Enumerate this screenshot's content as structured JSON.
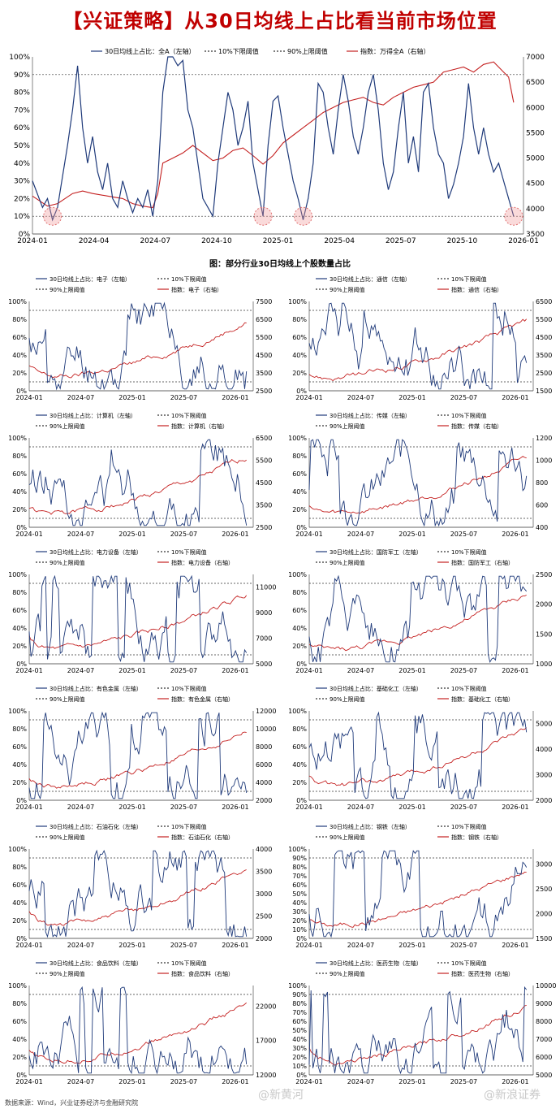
{
  "title": "【兴证策略】从30日均线上占比看当前市场位置",
  "subtitle": "图：部分行业30日均线上个股数量占比",
  "source": "数据来源：Wind，兴业证券经济与金融研究院",
  "watermarks": [
    "@新黄河",
    "@新浪证券"
  ],
  "colors": {
    "title": "#c00000",
    "ratio": "#1f3a7a",
    "index": "#c42020",
    "circle": "#e07070"
  },
  "threshold_labels": {
    "low": "10%下限阈值",
    "high": "90%上限阈值"
  },
  "chart_data": [
    {
      "id": "main",
      "type": "line",
      "legend": {
        "ratio": "30日均线上占比：全A（左轴）",
        "index": "指数：万得全A（右轴）"
      },
      "x_ticks": [
        "2024-01",
        "2024-04",
        "2024-07",
        "2024-10",
        "2025-01",
        "2025-04",
        "2025-07",
        "2025-10",
        "2026-01"
      ],
      "y_left_ticks": [
        "0%",
        "10%",
        "20%",
        "30%",
        "40%",
        "50%",
        "60%",
        "70%",
        "80%",
        "90%",
        "100%"
      ],
      "y_right_ticks": [
        "3500",
        "4000",
        "4500",
        "5000",
        "5500",
        "6000",
        "6500",
        "7000"
      ],
      "ylim_left": [
        0,
        100
      ],
      "ylim_right": [
        3500,
        7000
      ],
      "ratio_series": [
        [
          0,
          30
        ],
        [
          2,
          15
        ],
        [
          3,
          20
        ],
        [
          4,
          8
        ],
        [
          5,
          15
        ],
        [
          7,
          50
        ],
        [
          8,
          70
        ],
        [
          9,
          95
        ],
        [
          10,
          60
        ],
        [
          11,
          40
        ],
        [
          12,
          55
        ],
        [
          13,
          35
        ],
        [
          14,
          25
        ],
        [
          15,
          40
        ],
        [
          16,
          20
        ],
        [
          17,
          15
        ],
        [
          18,
          30
        ],
        [
          19,
          20
        ],
        [
          20,
          12
        ],
        [
          21,
          20
        ],
        [
          22,
          15
        ],
        [
          23,
          25
        ],
        [
          24,
          10
        ],
        [
          25,
          30
        ],
        [
          26,
          80
        ],
        [
          27,
          100
        ],
        [
          28,
          100
        ],
        [
          29,
          95
        ],
        [
          30,
          98
        ],
        [
          31,
          70
        ],
        [
          32,
          60
        ],
        [
          33,
          40
        ],
        [
          34,
          20
        ],
        [
          35,
          15
        ],
        [
          36,
          10
        ],
        [
          37,
          40
        ],
        [
          38,
          60
        ],
        [
          39,
          80
        ],
        [
          40,
          70
        ],
        [
          41,
          50
        ],
        [
          42,
          60
        ],
        [
          43,
          75
        ],
        [
          44,
          40
        ],
        [
          45,
          25
        ],
        [
          46,
          10
        ],
        [
          47,
          50
        ],
        [
          48,
          75
        ],
        [
          49,
          78
        ],
        [
          50,
          60
        ],
        [
          51,
          45
        ],
        [
          52,
          30
        ],
        [
          53,
          20
        ],
        [
          54,
          8
        ],
        [
          55,
          20
        ],
        [
          56,
          40
        ],
        [
          57,
          85
        ],
        [
          58,
          80
        ],
        [
          59,
          60
        ],
        [
          60,
          45
        ],
        [
          61,
          70
        ],
        [
          62,
          90
        ],
        [
          63,
          75
        ],
        [
          64,
          55
        ],
        [
          65,
          45
        ],
        [
          66,
          60
        ],
        [
          67,
          80
        ],
        [
          68,
          90
        ],
        [
          69,
          70
        ],
        [
          70,
          40
        ],
        [
          71,
          25
        ],
        [
          72,
          35
        ],
        [
          73,
          60
        ],
        [
          74,
          80
        ],
        [
          75,
          40
        ],
        [
          76,
          55
        ],
        [
          77,
          35
        ],
        [
          78,
          80
        ],
        [
          79,
          85
        ],
        [
          80,
          60
        ],
        [
          81,
          45
        ],
        [
          82,
          40
        ],
        [
          83,
          20
        ],
        [
          84,
          28
        ],
        [
          85,
          40
        ],
        [
          86,
          55
        ],
        [
          87,
          85
        ],
        [
          88,
          60
        ],
        [
          89,
          45
        ],
        [
          90,
          60
        ],
        [
          91,
          45
        ],
        [
          92,
          35
        ],
        [
          93,
          40
        ],
        [
          94,
          30
        ],
        [
          95,
          20
        ],
        [
          96,
          10
        ]
      ],
      "index_series": [
        [
          0,
          4250
        ],
        [
          3,
          4050
        ],
        [
          5,
          4100
        ],
        [
          8,
          4300
        ],
        [
          10,
          4350
        ],
        [
          12,
          4300
        ],
        [
          15,
          4250
        ],
        [
          18,
          4200
        ],
        [
          20,
          4100
        ],
        [
          22,
          4050
        ],
        [
          24,
          4020
        ],
        [
          25,
          4300
        ],
        [
          26,
          4900
        ],
        [
          28,
          5000
        ],
        [
          30,
          5100
        ],
        [
          32,
          5250
        ],
        [
          34,
          5100
        ],
        [
          36,
          4950
        ],
        [
          38,
          5000
        ],
        [
          40,
          5150
        ],
        [
          42,
          5200
        ],
        [
          44,
          5050
        ],
        [
          46,
          4880
        ],
        [
          48,
          5050
        ],
        [
          50,
          5300
        ],
        [
          52,
          5450
        ],
        [
          54,
          5600
        ],
        [
          56,
          5750
        ],
        [
          58,
          5900
        ],
        [
          60,
          6000
        ],
        [
          62,
          6100
        ],
        [
          64,
          6150
        ],
        [
          66,
          6200
        ],
        [
          68,
          6100
        ],
        [
          70,
          6050
        ],
        [
          72,
          6200
        ],
        [
          74,
          6300
        ],
        [
          76,
          6400
        ],
        [
          78,
          6450
        ],
        [
          80,
          6500
        ],
        [
          82,
          6700
        ],
        [
          84,
          6750
        ],
        [
          86,
          6800
        ],
        [
          88,
          6700
        ],
        [
          90,
          6850
        ],
        [
          92,
          6900
        ],
        [
          94,
          6700
        ],
        [
          95,
          6600
        ],
        [
          96,
          6100
        ]
      ],
      "circles": [
        [
          4,
          10
        ],
        [
          46,
          10
        ],
        [
          54,
          10
        ],
        [
          96,
          10
        ]
      ]
    },
    {
      "id": "s1",
      "type": "line",
      "legend": {
        "ratio": "30日均线上占比：电子（左轴）",
        "index": "指数：电子（右轴）"
      },
      "x_ticks": [
        "2024-01",
        "2024-07",
        "2025-01",
        "2025-07",
        "2026-01"
      ],
      "y_left_ticks": [
        "0%",
        "20%",
        "40%",
        "60%",
        "80%",
        "100%"
      ],
      "y_right_ticks": [
        "2500",
        "3500",
        "4500",
        "5500",
        "6500",
        "7500"
      ],
      "ylim_left": [
        0,
        100
      ],
      "ylim_right": [
        2500,
        7500
      ]
    },
    {
      "id": "s2",
      "type": "line",
      "legend": {
        "ratio": "30日均线上占比：通信（左轴）",
        "index": "指数：通信（右轴）"
      },
      "x_ticks": [
        "2024-01",
        "2024-07",
        "2025-01",
        "2025-07",
        "2026-01"
      ],
      "y_left_ticks": [
        "0%",
        "20%",
        "40%",
        "60%",
        "80%",
        "100%"
      ],
      "y_right_ticks": [
        "1500",
        "2500",
        "3500",
        "4500",
        "5500",
        "6500"
      ],
      "ylim_left": [
        0,
        100
      ],
      "ylim_right": [
        1500,
        6500
      ]
    },
    {
      "id": "s3",
      "type": "line",
      "legend": {
        "ratio": "30日均线上占比：计算机（左轴）",
        "index": "指数：计算机（右轴）"
      },
      "x_ticks": [
        "2024-01",
        "2024-07",
        "2025-01",
        "2025-07",
        "2026-01"
      ],
      "y_left_ticks": [
        "0%",
        "20%",
        "40%",
        "60%",
        "80%",
        "100%"
      ],
      "y_right_ticks": [
        "2500",
        "3500",
        "4500",
        "5500",
        "6500"
      ],
      "ylim_left": [
        0,
        100
      ],
      "ylim_right": [
        2500,
        6500
      ]
    },
    {
      "id": "s4",
      "type": "line",
      "legend": {
        "ratio": "30日均线上占比：传媒（左轴）",
        "index": "指数：传媒（右轴）"
      },
      "x_ticks": [
        "2024-01",
        "2024-07",
        "2025-01",
        "2025-07",
        "2026-01"
      ],
      "y_left_ticks": [
        "0%",
        "20%",
        "40%",
        "60%",
        "80%",
        "100%"
      ],
      "y_right_ticks": [
        "400",
        "600",
        "800",
        "1000",
        "1200"
      ],
      "ylim_left": [
        0,
        100
      ],
      "ylim_right": [
        400,
        1200
      ]
    },
    {
      "id": "s5",
      "type": "line",
      "legend": {
        "ratio": "30日均线上占比：电力设备（左轴）",
        "index": "指数：电力设备（右轴）"
      },
      "x_ticks": [
        "2024-01",
        "2024-07",
        "2025-01",
        "2025-07",
        "2026-01"
      ],
      "y_left_ticks": [
        "0%",
        "20%",
        "40%",
        "60%",
        "80%",
        "100%"
      ],
      "y_right_ticks": [
        "5000",
        "7000",
        "9000",
        "11000"
      ],
      "ylim_left": [
        0,
        100
      ],
      "ylim_right": [
        5000,
        12000
      ]
    },
    {
      "id": "s6",
      "type": "line",
      "legend": {
        "ratio": "30日均线上占比：国防军工（左轴）",
        "index": "指数：国防军工（右轴）"
      },
      "x_ticks": [
        "2024-01",
        "2024-07",
        "2025-01",
        "2025-07",
        "2026-01"
      ],
      "y_left_ticks": [
        "0%",
        "20%",
        "40%",
        "60%",
        "80%",
        "100%"
      ],
      "y_right_ticks": [
        "1000",
        "1500",
        "2000",
        "2500"
      ],
      "ylim_left": [
        0,
        100
      ],
      "ylim_right": [
        1000,
        2500
      ]
    },
    {
      "id": "s7",
      "type": "line",
      "legend": {
        "ratio": "30日均线上占比：有色金属（左轴）",
        "index": "指数：有色金属（右轴）"
      },
      "x_ticks": [
        "2024-01",
        "2024-07",
        "2025-01",
        "2025-07",
        "2026-01"
      ],
      "y_left_ticks": [
        "0%",
        "20%",
        "40%",
        "60%",
        "80%",
        "100%"
      ],
      "y_right_ticks": [
        "2000",
        "4000",
        "6000",
        "8000",
        "10000",
        "12000"
      ],
      "ylim_left": [
        0,
        100
      ],
      "ylim_right": [
        2000,
        12000
      ]
    },
    {
      "id": "s8",
      "type": "line",
      "legend": {
        "ratio": "30日均线上占比：基础化工（左轴）",
        "index": "指数：基础化工（右轴）"
      },
      "x_ticks": [
        "2024-01",
        "2024-07",
        "2025-01",
        "2025-07",
        "2026-01"
      ],
      "y_left_ticks": [
        "0%",
        "20%",
        "40%",
        "60%",
        "80%",
        "100%"
      ],
      "y_right_ticks": [
        "2000",
        "3000",
        "4000",
        "5000"
      ],
      "ylim_left": [
        0,
        100
      ],
      "ylim_right": [
        2000,
        5500
      ]
    },
    {
      "id": "s9",
      "type": "line",
      "legend": {
        "ratio": "30日均线上占比：石油石化（左轴）",
        "index": "指数：石油石化（右轴）"
      },
      "x_ticks": [
        "2024-01",
        "2024-07",
        "2025-01",
        "2025-07",
        "2026-01"
      ],
      "y_left_ticks": [
        "0%",
        "20%",
        "40%",
        "60%",
        "80%",
        "100%"
      ],
      "y_right_ticks": [
        "2000",
        "2500",
        "3000",
        "3500",
        "4000"
      ],
      "ylim_left": [
        0,
        100
      ],
      "ylim_right": [
        2000,
        4000
      ]
    },
    {
      "id": "s10",
      "type": "line",
      "legend": {
        "ratio": "30日均线上占比：钢铁（左轴）",
        "index": "指数：钢铁（右轴）"
      },
      "x_ticks": [
        "2024-01",
        "2024-07",
        "2025-01",
        "2025-07",
        "2026-01"
      ],
      "y_left_ticks": [
        "0%",
        "10%",
        "20%",
        "30%",
        "40%",
        "50%",
        "60%",
        "70%",
        "80%",
        "90%",
        "100%"
      ],
      "y_right_ticks": [
        "1500",
        "2000",
        "2500",
        "3000"
      ],
      "ylim_left": [
        0,
        100
      ],
      "ylim_right": [
        1500,
        3300
      ]
    },
    {
      "id": "s11",
      "type": "line",
      "legend": {
        "ratio": "30日均线上占比：食品饮料（左轴）",
        "index": "指数：食品饮料（右轴）"
      },
      "x_ticks": [
        "2024-01",
        "2024-07",
        "2025-01",
        "2025-07",
        "2026-01"
      ],
      "y_left_ticks": [
        "0%",
        "20%",
        "40%",
        "60%",
        "80%",
        "100%"
      ],
      "y_right_ticks": [
        "12000",
        "17000",
        "22000"
      ],
      "ylim_left": [
        0,
        100
      ],
      "ylim_right": [
        12000,
        25000
      ]
    },
    {
      "id": "s12",
      "type": "line",
      "legend": {
        "ratio": "30日均线上占比：医药生物（左轴）",
        "index": "指数：医药生物（右轴）"
      },
      "x_ticks": [
        "2024-01",
        "2024-07",
        "2025-01",
        "2025-07",
        "2026-01"
      ],
      "y_left_ticks": [
        "0%",
        "10%",
        "20%",
        "30%",
        "40%",
        "50%",
        "60%",
        "70%",
        "80%",
        "90%",
        "100%"
      ],
      "y_right_ticks": [
        "5000",
        "6000",
        "7000",
        "8000",
        "9000",
        "10000"
      ],
      "ylim_left": [
        0,
        100
      ],
      "ylim_right": [
        5000,
        10000
      ]
    }
  ]
}
